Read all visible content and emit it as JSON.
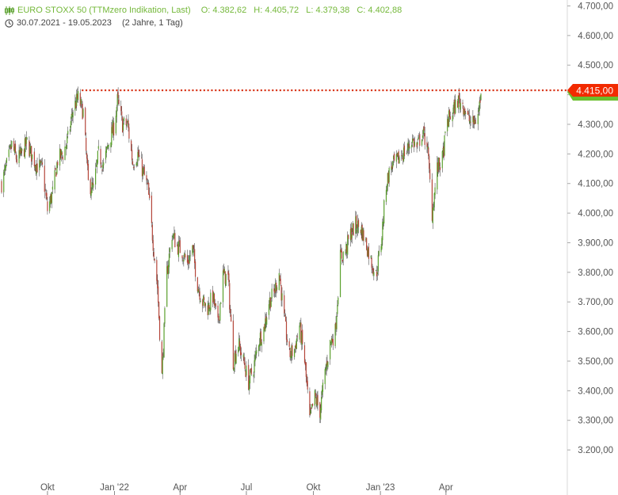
{
  "header": {
    "title": "EURO STOXX 50 (TTMzero Indikation, Last)",
    "open": "O: 4.382,62",
    "high": "H: 4.405,72",
    "low": "L: 4.379,38",
    "close": "C: 4.402,88",
    "date_range": "30.07.2021 - 19.05.2023",
    "period": "(2 Jahre, 1 Tag)",
    "chart_icon": "candlestick-icon",
    "clock_icon": "clock-icon"
  },
  "colors": {
    "up": "#5aa02c",
    "down": "#b5463a",
    "wick": "#333333",
    "reference_line": "#d93a1f",
    "price_badge": "#f22a00",
    "price_badge_shadow": "#6bbf2e",
    "axis_text": "#555555",
    "header_title": "#74b83a"
  },
  "chart_data": {
    "type": "candlestick",
    "x_start": "2021-07-30",
    "x_end": "2023-05-19",
    "ylim": [
      3120,
      4720
    ],
    "yticks": [
      {
        "value": 3200,
        "label": "3.200,00"
      },
      {
        "value": 3300,
        "label": "3.300,00"
      },
      {
        "value": 3400,
        "label": "3.400,00"
      },
      {
        "value": 3500,
        "label": "3.500,00"
      },
      {
        "value": 3600,
        "label": "3.600,00"
      },
      {
        "value": 3700,
        "label": "3.700,00"
      },
      {
        "value": 3800,
        "label": "3.800,00"
      },
      {
        "value": 3900,
        "label": "3.900,00"
      },
      {
        "value": 4000,
        "label": "4.000,00"
      },
      {
        "value": 4100,
        "label": "4.100,00"
      },
      {
        "value": 4200,
        "label": "4.200,00"
      },
      {
        "value": 4300,
        "label": "4.300,00"
      },
      {
        "value": 4400,
        "label": "4.400,00"
      },
      {
        "value": 4500,
        "label": "4.500,00"
      },
      {
        "value": 4600,
        "label": "4.600,00"
      },
      {
        "value": 4700,
        "label": "4.700,00"
      }
    ],
    "xticks": [
      {
        "date": "2021-10-01",
        "label": "Okt"
      },
      {
        "date": "2022-01-01",
        "label": "Jan '22"
      },
      {
        "date": "2022-04-01",
        "label": "Apr"
      },
      {
        "date": "2022-07-01",
        "label": "Jul"
      },
      {
        "date": "2022-10-01",
        "label": "Okt"
      },
      {
        "date": "2023-01-01",
        "label": "Jan '23"
      },
      {
        "date": "2023-04-01",
        "label": "Apr"
      }
    ],
    "reference_line": {
      "value": 4415,
      "label": "4.415,00",
      "style": "dotted",
      "start_date": "2021-11-17"
    },
    "close_path": [
      [
        "2021-07-30",
        4100
      ],
      [
        "2021-08-06",
        4160
      ],
      [
        "2021-08-13",
        4230
      ],
      [
        "2021-08-20",
        4180
      ],
      [
        "2021-08-27",
        4200
      ],
      [
        "2021-09-03",
        4240
      ],
      [
        "2021-09-10",
        4190
      ],
      [
        "2021-09-17",
        4160
      ],
      [
        "2021-09-24",
        4150
      ],
      [
        "2021-10-01",
        4010
      ],
      [
        "2021-10-08",
        4070
      ],
      [
        "2021-10-15",
        4180
      ],
      [
        "2021-10-22",
        4200
      ],
      [
        "2021-10-29",
        4250
      ],
      [
        "2021-11-05",
        4350
      ],
      [
        "2021-11-12",
        4390
      ],
      [
        "2021-11-19",
        4340
      ],
      [
        "2021-11-26",
        4100
      ],
      [
        "2021-12-03",
        4080
      ],
      [
        "2021-12-10",
        4200
      ],
      [
        "2021-12-17",
        4160
      ],
      [
        "2021-12-24",
        4240
      ],
      [
        "2021-12-31",
        4290
      ],
      [
        "2022-01-05",
        4380
      ],
      [
        "2022-01-12",
        4300
      ],
      [
        "2022-01-19",
        4300
      ],
      [
        "2022-01-26",
        4170
      ],
      [
        "2022-02-02",
        4200
      ],
      [
        "2022-02-09",
        4140
      ],
      [
        "2022-02-16",
        4080
      ],
      [
        "2022-02-23",
        3900
      ],
      [
        "2022-03-01",
        3750
      ],
      [
        "2022-03-07",
        3450
      ],
      [
        "2022-03-14",
        3800
      ],
      [
        "2022-03-21",
        3930
      ],
      [
        "2022-03-28",
        3890
      ],
      [
        "2022-04-04",
        3870
      ],
      [
        "2022-04-11",
        3830
      ],
      [
        "2022-04-18",
        3880
      ],
      [
        "2022-04-25",
        3760
      ],
      [
        "2022-05-02",
        3700
      ],
      [
        "2022-05-09",
        3680
      ],
      [
        "2022-05-16",
        3720
      ],
      [
        "2022-05-23",
        3620
      ],
      [
        "2022-05-30",
        3790
      ],
      [
        "2022-06-06",
        3780
      ],
      [
        "2022-06-13",
        3500
      ],
      [
        "2022-06-20",
        3560
      ],
      [
        "2022-06-27",
        3500
      ],
      [
        "2022-07-04",
        3430
      ],
      [
        "2022-07-11",
        3480
      ],
      [
        "2022-07-18",
        3570
      ],
      [
        "2022-07-25",
        3610
      ],
      [
        "2022-08-01",
        3700
      ],
      [
        "2022-08-08",
        3730
      ],
      [
        "2022-08-15",
        3800
      ],
      [
        "2022-08-22",
        3640
      ],
      [
        "2022-08-29",
        3520
      ],
      [
        "2022-09-05",
        3540
      ],
      [
        "2022-09-12",
        3620
      ],
      [
        "2022-09-19",
        3500
      ],
      [
        "2022-09-26",
        3300
      ],
      [
        "2022-10-03",
        3380
      ],
      [
        "2022-10-10",
        3330
      ],
      [
        "2022-10-17",
        3460
      ],
      [
        "2022-10-24",
        3560
      ],
      [
        "2022-10-31",
        3600
      ],
      [
        "2022-11-07",
        3850
      ],
      [
        "2022-11-14",
        3870
      ],
      [
        "2022-11-21",
        3930
      ],
      [
        "2022-11-28",
        3960
      ],
      [
        "2022-12-05",
        3950
      ],
      [
        "2022-12-12",
        3900
      ],
      [
        "2022-12-19",
        3840
      ],
      [
        "2022-12-26",
        3790
      ],
      [
        "2023-01-02",
        3900
      ],
      [
        "2023-01-09",
        4100
      ],
      [
        "2023-01-16",
        4160
      ],
      [
        "2023-01-23",
        4170
      ],
      [
        "2023-01-30",
        4200
      ],
      [
        "2023-02-06",
        4210
      ],
      [
        "2023-02-13",
        4250
      ],
      [
        "2023-02-20",
        4220
      ],
      [
        "2023-02-27",
        4270
      ],
      [
        "2023-03-06",
        4240
      ],
      [
        "2023-03-13",
        4000
      ],
      [
        "2023-03-20",
        4150
      ],
      [
        "2023-03-27",
        4180
      ],
      [
        "2023-04-03",
        4310
      ],
      [
        "2023-04-10",
        4340
      ],
      [
        "2023-04-17",
        4380
      ],
      [
        "2023-04-24",
        4370
      ],
      [
        "2023-05-01",
        4320
      ],
      [
        "2023-05-08",
        4300
      ],
      [
        "2023-05-15",
        4330
      ],
      [
        "2023-05-19",
        4403
      ]
    ],
    "last_candle": {
      "date": "2023-05-19",
      "open": 4382.62,
      "high": 4405.72,
      "low": 4379.38,
      "close": 4402.88
    }
  }
}
